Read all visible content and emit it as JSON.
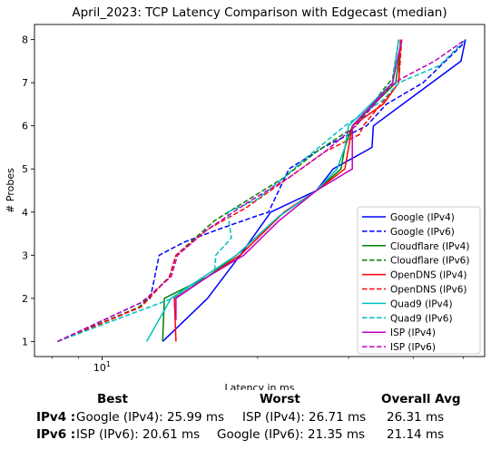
{
  "chart_data": {
    "type": "line",
    "title": "April_2023: TCP Latency Comparison with Edgecast (median)",
    "xlabel": "Latency in ms",
    "ylabel": "# Probes",
    "xscale": "log",
    "xlim": [
      7.4,
      55
    ],
    "ylim": [
      0.65,
      8.35
    ],
    "xticks": [
      {
        "value": 10,
        "label": "10"
      }
    ],
    "yticks": [
      1,
      2,
      3,
      4,
      5,
      6,
      7,
      8
    ],
    "grid": false,
    "legend_position": "lower-right",
    "series": [
      {
        "name": "Google (IPv4)",
        "color": "#0000ff",
        "dash": "solid",
        "x": [
          13.1,
          13.1,
          16.0,
          18.5,
          21.2,
          26.0,
          28.0,
          33.3,
          33.5,
          49.5,
          50.5
        ],
        "y": [
          1,
          1,
          2,
          3,
          4,
          4.5,
          5,
          5.5,
          6,
          7.5,
          8
        ]
      },
      {
        "name": "Google (IPv6)",
        "color": "#0000ff",
        "dash": "dashed",
        "x": [
          8.2,
          12.4,
          12.9,
          14.4,
          16.8,
          19.8,
          21.0,
          23.0,
          26.8,
          32.5,
          35.5,
          41.8,
          43.5,
          50.0,
          50.5
        ],
        "y": [
          1,
          2,
          3,
          3.3,
          3.6,
          3.9,
          4,
          5,
          5.5,
          6,
          6.5,
          7,
          7.2,
          7.9,
          8
        ]
      },
      {
        "name": "Cloudflare (IPv4)",
        "color": "#008000",
        "dash": "solid",
        "x": [
          13.1,
          13.2,
          16.0,
          18.2,
          22.0,
          26.0,
          29.0,
          29.5,
          30.5,
          37.0,
          38.0
        ],
        "y": [
          1,
          2,
          2.5,
          3,
          3.9,
          4.5,
          5,
          5.5,
          6,
          7,
          8
        ]
      },
      {
        "name": "Cloudflare (IPv6)",
        "color": "#008000",
        "dash": "dashed",
        "x": [
          8.2,
          11.8,
          13.5,
          13.9,
          16.5,
          22.5,
          26.0,
          31.0,
          34.8,
          36.5,
          37.5
        ],
        "y": [
          1,
          1.8,
          2.5,
          3,
          3.8,
          4.8,
          5.4,
          6,
          6.8,
          7.1,
          8
        ]
      },
      {
        "name": "OpenDNS (IPv4)",
        "color": "#ff0000",
        "dash": "solid",
        "x": [
          13.9,
          13.8,
          16.0,
          18.5,
          22.5,
          26.0,
          29.5,
          30.5,
          35.0,
          37.5,
          37.8
        ],
        "y": [
          1,
          2,
          2.5,
          3,
          4,
          4.5,
          5,
          6,
          6.5,
          7,
          8
        ]
      },
      {
        "name": "OpenDNS (IPv6)",
        "color": "#ff0000",
        "dash": "dashed",
        "x": [
          8.2,
          11.9,
          13.5,
          13.9,
          16.0,
          19.0,
          23.0,
          27.0,
          31.5,
          32.0,
          37.5,
          38.0
        ],
        "y": [
          1,
          1.8,
          2.5,
          3,
          3.6,
          4.1,
          4.8,
          5.4,
          5.8,
          6,
          7,
          8
        ]
      },
      {
        "name": "Quad9 (IPv4)",
        "color": "#00bfbf",
        "dash": "solid",
        "x": [
          12.2,
          13.6,
          18.2,
          22.0,
          26.0,
          28.5,
          29.5,
          30.0,
          36.5,
          37.5
        ],
        "y": [
          1,
          2,
          3,
          3.9,
          4.5,
          5,
          5.5,
          6,
          7,
          8
        ]
      },
      {
        "name": "Quad9 (IPv6)",
        "color": "#00bfbf",
        "dash": "dashed",
        "x": [
          8.2,
          13.7,
          16.5,
          16.6,
          17.8,
          17.5,
          20.0,
          22.5,
          24.5,
          29.5,
          35.0,
          37.5,
          45.0,
          50.5
        ],
        "y": [
          1,
          2,
          2.6,
          3,
          3.4,
          4,
          4.3,
          4.8,
          5.2,
          6,
          6.6,
          7,
          7.4,
          8
        ]
      },
      {
        "name": "ISP (IPv4)",
        "color": "#bf00bf",
        "dash": "solid",
        "x": [
          13.9,
          13.9,
          16.0,
          18.8,
          22.0,
          26.0,
          30.5,
          30.5,
          36.5,
          38.0
        ],
        "y": [
          1.5,
          2,
          2.5,
          3,
          3.8,
          4.5,
          5,
          6,
          7,
          8
        ]
      },
      {
        "name": "ISP (IPv6)",
        "color": "#bf00bf",
        "dash": "dashed",
        "x": [
          8.2,
          11.9,
          13.6,
          14.0,
          16.0,
          19.0,
          23.0,
          27.0,
          31.0,
          36.0,
          38.0,
          44.0,
          50.5
        ],
        "y": [
          1,
          1.9,
          2.5,
          3,
          3.6,
          4.2,
          4.8,
          5.4,
          6,
          6.9,
          7.1,
          7.5,
          8
        ]
      }
    ]
  },
  "summary": {
    "headers": {
      "best": "Best",
      "worst": "Worst",
      "avg": "Overall Avg"
    },
    "rows": [
      {
        "label": "IPv4 :",
        "best": "Google (IPv4): 25.99 ms",
        "worst": "ISP (IPv4): 26.71 ms",
        "avg": "26.31 ms"
      },
      {
        "label": "IPv6 :",
        "best": "ISP (IPv6): 20.61 ms",
        "worst": "Google (IPv6): 21.35 ms",
        "avg": "21.14 ms"
      }
    ]
  }
}
